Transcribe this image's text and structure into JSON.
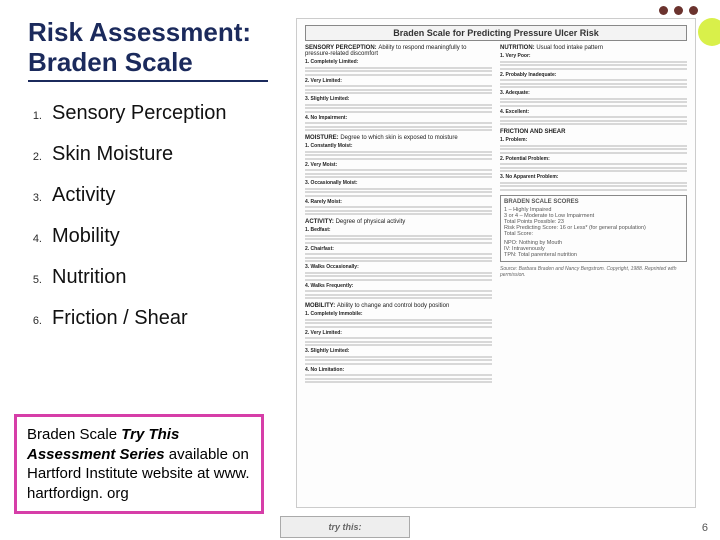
{
  "deco": {
    "dot_color": "#6b332e",
    "circle_color": "#d9f04a"
  },
  "title": "Risk Assessment: Braden Scale",
  "items": [
    {
      "n": "1.",
      "label": "Sensory Perception"
    },
    {
      "n": "2.",
      "label": "Skin Moisture"
    },
    {
      "n": "3.",
      "label": "Activity"
    },
    {
      "n": "4.",
      "label": "Mobility"
    },
    {
      "n": "5.",
      "label": "Nutrition"
    },
    {
      "n": "6.",
      "label": "Friction / Shear"
    }
  ],
  "callout": {
    "lead1": "Braden Scale ",
    "lead2": "Try This Assessment Series",
    "rest": " available on Hartford Institute website at www. hartfordign. org",
    "border_color": "#d63ea8"
  },
  "page_number": "6",
  "doc": {
    "title": "Braden Scale for Predicting Pressure Ulcer Risk",
    "left_sections": [
      {
        "head": "SENSORY PERCEPTION:",
        "tag": "Ability to respond meaningfully to pressure-related discomfort",
        "subs": [
          "1. Completely Limited:",
          "2. Very Limited:",
          "3. Slightly Limited:",
          "4. No Impairment:"
        ]
      },
      {
        "head": "MOISTURE:",
        "tag": "Degree to which skin is exposed to moisture",
        "subs": [
          "1. Constantly Moist:",
          "2. Very Moist:",
          "3. Occasionally Moist:",
          "4. Rarely Moist:"
        ]
      },
      {
        "head": "ACTIVITY:",
        "tag": "Degree of physical activity",
        "subs": [
          "1. Bedfast:",
          "2. Chairfast:",
          "3. Walks Occasionally:",
          "4. Walks Frequently:"
        ]
      },
      {
        "head": "MOBILITY:",
        "tag": "Ability to change and control body position",
        "subs": [
          "1. Completely Immobile:",
          "2. Very Limited:",
          "3. Slightly Limited:",
          "4. No Limitation:"
        ]
      }
    ],
    "right_sections": [
      {
        "head": "NUTRITION:",
        "tag": "Usual food intake pattern",
        "subs": [
          "1. Very Poor:",
          "2. Probably Inadequate:",
          "3. Adequate:",
          "4. Excellent:"
        ]
      },
      {
        "head": "FRICTION AND SHEAR",
        "tag": "",
        "subs": [
          "1. Problem:",
          "2. Potential Problem:",
          "3. No Apparent Problem:"
        ]
      }
    ],
    "scores": {
      "title": "BRADEN SCALE SCORES",
      "rows": [
        "1 – Highly Impaired",
        "3 or 4 – Moderate to Low Impairment",
        "Total Points Possible: 23",
        "Risk Predicting Score: 16 or Less* (for general population)",
        "Total Score:"
      ],
      "legend": [
        "NPO: Nothing by Mouth",
        "IV: Intravenously",
        "TPN: Total parenteral nutrition"
      ]
    },
    "source": "Source: Barbara Braden and Nancy Bergstrom. Copyright, 1988. Reprinted with permission.",
    "trythis": "try this:"
  }
}
